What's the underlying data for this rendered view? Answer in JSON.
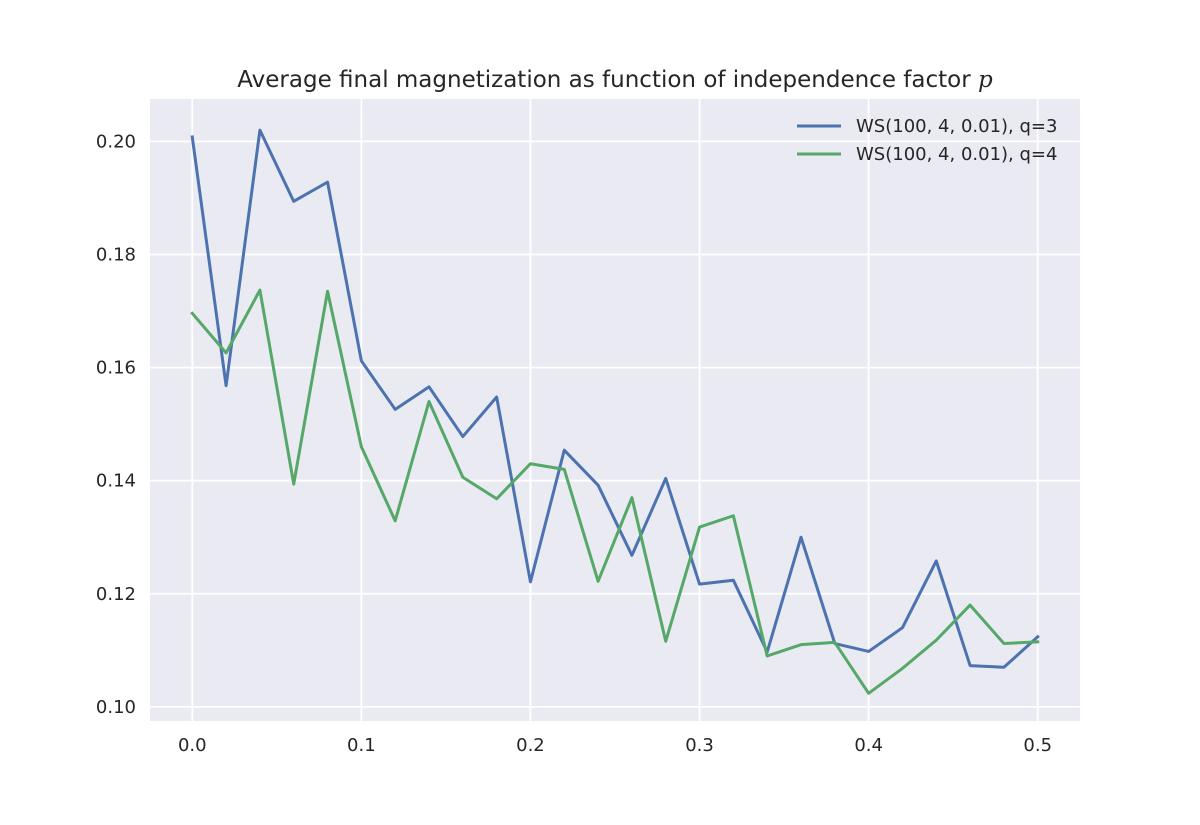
{
  "chart_data": {
    "type": "line",
    "title": "Average final magnetization as function of independence factor ",
    "title_var": "p",
    "xlabel": "",
    "ylabel": "",
    "xlim": [
      -0.025,
      0.525
    ],
    "ylim": [
      0.0975,
      0.2075
    ],
    "xticks": [
      0.0,
      0.1,
      0.2,
      0.3,
      0.4,
      0.5
    ],
    "xtick_labels": [
      "0.0",
      "0.1",
      "0.2",
      "0.3",
      "0.4",
      "0.5"
    ],
    "yticks": [
      0.1,
      0.12,
      0.14,
      0.16,
      0.18,
      0.2
    ],
    "ytick_labels": [
      "0.10",
      "0.12",
      "0.14",
      "0.16",
      "0.18",
      "0.20"
    ],
    "grid": true,
    "legend_position": "top-right",
    "x": [
      0.0,
      0.02,
      0.04,
      0.06,
      0.08,
      0.1,
      0.12,
      0.14,
      0.16,
      0.18,
      0.2,
      0.22,
      0.24,
      0.26,
      0.28,
      0.3,
      0.32,
      0.34,
      0.36,
      0.38,
      0.4,
      0.42,
      0.44,
      0.46,
      0.48,
      0.5
    ],
    "series": [
      {
        "name": "WS(100, 4, 0.01), q=3",
        "color": "#4c72b0",
        "values": [
          0.2008,
          0.1568,
          0.202,
          0.1894,
          0.1928,
          0.1612,
          0.1526,
          0.1566,
          0.1478,
          0.1548,
          0.1221,
          0.1454,
          0.1392,
          0.1268,
          0.1404,
          0.1217,
          0.1224,
          0.1097,
          0.13,
          0.1112,
          0.1098,
          0.114,
          0.1258,
          0.1073,
          0.107,
          0.1124
        ]
      },
      {
        "name": "WS(100, 4, 0.01), q=4",
        "color": "#55a868",
        "values": [
          0.1696,
          0.1626,
          0.1737,
          0.1394,
          0.1735,
          0.146,
          0.1329,
          0.154,
          0.1406,
          0.1368,
          0.143,
          0.142,
          0.1222,
          0.137,
          0.1116,
          0.1318,
          0.1338,
          0.109,
          0.111,
          0.1114,
          0.1024,
          0.1068,
          0.1118,
          0.118,
          0.1112,
          0.1115
        ]
      }
    ]
  }
}
